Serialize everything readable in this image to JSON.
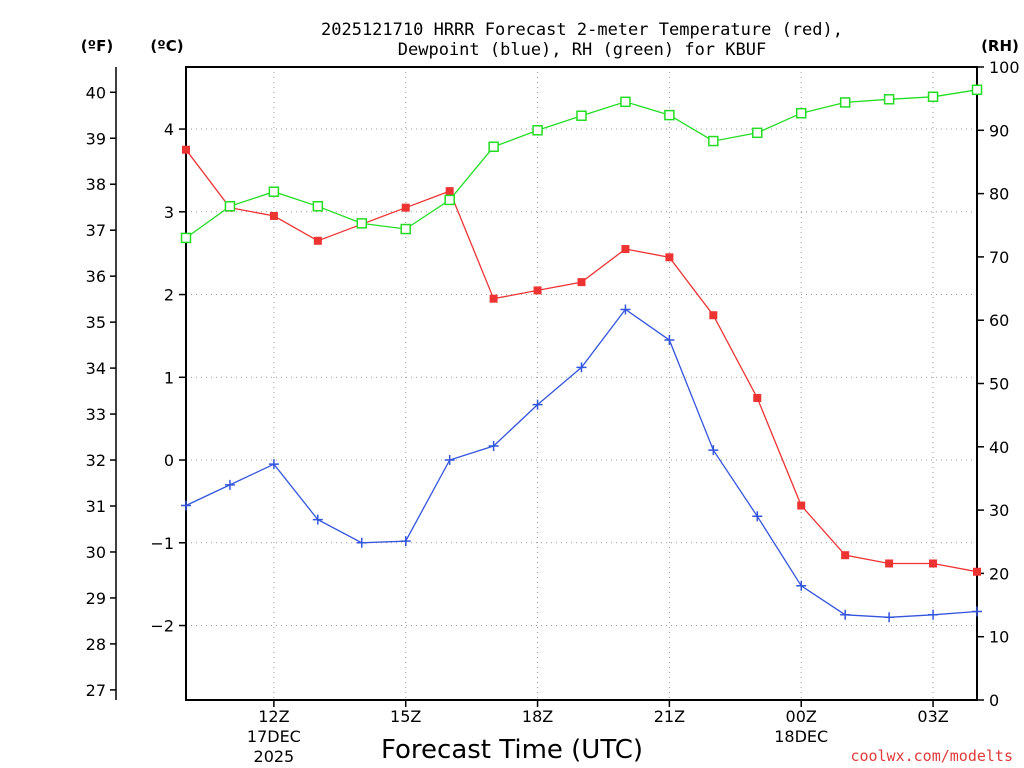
{
  "chart_data": {
    "type": "line",
    "title_line1": "2025121710 HRRR Forecast 2-meter Temperature (red),",
    "title_line2": "Dewpoint (blue), RH (green) for KBUF",
    "xlabel": "Forecast Time (UTC)",
    "credit": "coolwx.com/modelts",
    "units": {
      "fahrenheit": "(ºF)",
      "celsius": "(ºC)",
      "rh": "(RH)"
    },
    "x": [
      10,
      11,
      12,
      13,
      14,
      15,
      16,
      17,
      18,
      19,
      20,
      21,
      22,
      23,
      24,
      25,
      26,
      27,
      28
    ],
    "xlim": [
      10,
      28
    ],
    "x_ticks": [
      {
        "x": 12,
        "line1": "12Z",
        "line2": "17DEC",
        "line3": "2025"
      },
      {
        "x": 15,
        "line1": "15Z",
        "line2": "",
        "line3": ""
      },
      {
        "x": 18,
        "line1": "18Z",
        "line2": "",
        "line3": ""
      },
      {
        "x": 21,
        "line1": "21Z",
        "line2": "",
        "line3": ""
      },
      {
        "x": 24,
        "line1": "00Z",
        "line2": "18DEC",
        "line3": ""
      },
      {
        "x": 27,
        "line1": "03Z",
        "line2": "",
        "line3": ""
      }
    ],
    "celsius_axis": {
      "ylim": [
        -2.9,
        4.75
      ],
      "ticks": [
        "4",
        "3",
        "2",
        "1",
        "0",
        "−1",
        "−2"
      ]
    },
    "fahrenheit_axis": {
      "ylim": [
        26.78,
        40.55
      ],
      "ticks": [
        "40",
        "39",
        "38",
        "37",
        "36",
        "35",
        "34",
        "33",
        "32",
        "31",
        "30",
        "29",
        "28",
        "27"
      ]
    },
    "rh_axis": {
      "ylim": [
        0,
        100
      ],
      "ticks": [
        "100",
        "90",
        "80",
        "70",
        "60",
        "50",
        "40",
        "30",
        "20",
        "10",
        "0"
      ]
    },
    "series": [
      {
        "name": "Temperature",
        "axis": "celsius",
        "color": "#ee3333",
        "marker": "filled-square",
        "values": [
          3.75,
          3.05,
          2.95,
          2.65,
          2.85,
          3.05,
          3.25,
          1.95,
          2.05,
          2.15,
          2.55,
          2.45,
          1.75,
          0.75,
          -0.55,
          -1.15,
          -1.25,
          -1.25,
          -1.35
        ]
      },
      {
        "name": "Dewpoint",
        "axis": "celsius",
        "color": "#3355dd",
        "marker": "plus",
        "values": [
          -0.55,
          -0.3,
          -0.05,
          -0.72,
          -1.0,
          -0.98,
          0.0,
          0.17,
          0.67,
          1.12,
          1.82,
          1.45,
          0.12,
          -0.68,
          -1.52,
          -1.87,
          -1.9,
          -1.87,
          -1.83
        ]
      },
      {
        "name": "RH",
        "axis": "rh",
        "color": "#22dd22",
        "marker": "open-square",
        "values": [
          73,
          78,
          80.3,
          78,
          75.3,
          74.4,
          79,
          87.4,
          90,
          92.3,
          94.5,
          92.4,
          88.3,
          89.6,
          92.7,
          94.4,
          94.9,
          95.3,
          96.4
        ]
      }
    ]
  }
}
